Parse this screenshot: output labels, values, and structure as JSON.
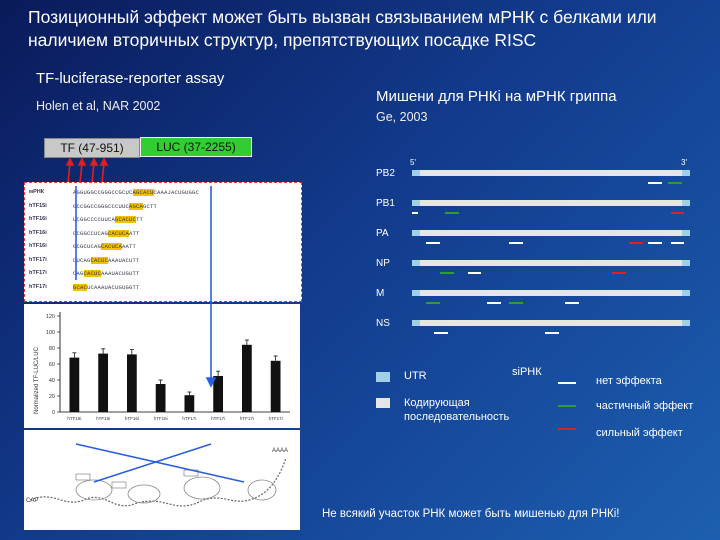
{
  "title": "Позиционный эффект может быть вызван связыванием мРНК с белками или наличием вторичных структур, препятствующих посадке RISC",
  "assay_title": "TF-luciferase-reporter assay",
  "left_reference": "Holen et al, NAR 2002",
  "construct": {
    "tf": "TF (47-951)",
    "luc": "LUC (37-2255)"
  },
  "sequences": [
    {
      "label": "мРНК",
      "seq": "AGGUGGCCGGGCCGCUCAGCACUCAAAJACUGUGGC",
      "hl": [
        17,
        23
      ]
    },
    {
      "label": "hTF15i",
      "seq": "GCCGGCCGGGCCCUUCAGCAGCTT",
      "hl": [
        16,
        20
      ]
    },
    {
      "label": "hTF16i",
      "seq": "UCGGCCCCUUCAGCACUCTT",
      "hl": [
        12,
        18
      ]
    },
    {
      "label": "hTF16i",
      "seq": "CCGGCCUCAGCACUCAATT",
      "hl": [
        10,
        16
      ]
    },
    {
      "label": "hTF16i",
      "seq": "GCGCUCAGCACUCAAATT",
      "hl": [
        8,
        14
      ]
    },
    {
      "label": "hTF17i",
      "seq": "CUCAGCACUCAAAUACUTT",
      "hl": [
        5,
        10
      ]
    },
    {
      "label": "hTF17i",
      "seq": "CAGCACUCAAAUACUGUTT",
      "hl": [
        3,
        8
      ]
    },
    {
      "label": "hTF17i",
      "seq": "GCACUCAAAUACUGUGGTT",
      "hl": [
        0,
        4
      ]
    }
  ],
  "chart_data": {
    "type": "bar",
    "ylabel": "Normalized TF-LUC/LUC",
    "ylim": [
      0,
      120
    ],
    "yticks": [
      0,
      20,
      40,
      60,
      80,
      100,
      120
    ],
    "categories": [
      "hTF15i",
      "hTF16i",
      "hTF16i",
      "hTF16i",
      "hTF17i",
      "hTF17i",
      "hTF17i",
      "hTF17i"
    ],
    "values": [
      68,
      73,
      72,
      35,
      21,
      45,
      84,
      64
    ],
    "errors": [
      6,
      6,
      6,
      5,
      4,
      6,
      6,
      6
    ]
  },
  "structure_labels": [
    "AAAA",
    "CAP"
  ],
  "right": {
    "title": "Мишени для РНКi на мРНК гриппа",
    "reference": "Ge, 2003",
    "end5": "5'",
    "end3": "3'",
    "genes": [
      {
        "name": "PB2",
        "marks": [
          {
            "start": 0.85,
            "len": 0.05,
            "eff": "none"
          },
          {
            "start": 0.92,
            "len": 0.05,
            "eff": "partial"
          }
        ]
      },
      {
        "name": "PB1",
        "marks": [
          {
            "start": 0.0,
            "len": 0.02,
            "eff": "none"
          },
          {
            "start": 0.12,
            "len": 0.05,
            "eff": "partial"
          },
          {
            "start": 0.93,
            "len": 0.05,
            "eff": "strong"
          }
        ]
      },
      {
        "name": "PA",
        "marks": [
          {
            "start": 0.05,
            "len": 0.05,
            "eff": "none"
          },
          {
            "start": 0.35,
            "len": 0.05,
            "eff": "none"
          },
          {
            "start": 0.78,
            "len": 0.05,
            "eff": "strong"
          },
          {
            "start": 0.85,
            "len": 0.05,
            "eff": "none"
          },
          {
            "start": 0.93,
            "len": 0.05,
            "eff": "none"
          }
        ]
      },
      {
        "name": "NP",
        "marks": [
          {
            "start": 0.1,
            "len": 0.05,
            "eff": "partial"
          },
          {
            "start": 0.2,
            "len": 0.05,
            "eff": "none"
          },
          {
            "start": 0.72,
            "len": 0.05,
            "eff": "strong"
          }
        ]
      },
      {
        "name": "M",
        "marks": [
          {
            "start": 0.05,
            "len": 0.05,
            "eff": "partial"
          },
          {
            "start": 0.27,
            "len": 0.05,
            "eff": "none"
          },
          {
            "start": 0.35,
            "len": 0.05,
            "eff": "partial"
          },
          {
            "start": 0.55,
            "len": 0.05,
            "eff": "none"
          }
        ]
      },
      {
        "name": "NS",
        "marks": [
          {
            "start": 0.08,
            "len": 0.05,
            "eff": "none"
          },
          {
            "start": 0.48,
            "len": 0.05,
            "eff": "none"
          }
        ]
      }
    ],
    "legend": {
      "utr": "UTR",
      "coding": "Кодирующая последовательность",
      "sirna": "siРНК",
      "none": "нет эффекта",
      "partial": "частичный эффект",
      "strong": "сильный эффект"
    },
    "colors": {
      "none": "#ffffff",
      "partial": "#2e9e2e",
      "strong": "#e02020",
      "utr": "#9fd0e8",
      "coding": "#e6e6e6"
    }
  },
  "footer": "Не всякий участок РНК может быть мишенью для РНКi!"
}
